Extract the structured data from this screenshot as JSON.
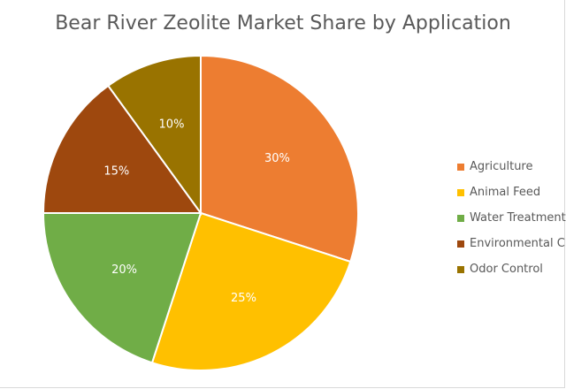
{
  "chart_data": {
    "type": "pie",
    "title": "Bear River Zeolite Market Share by Application",
    "categories": [
      "Agriculture",
      "Animal Feed",
      "Water Treatment",
      "Environmental Cleanup",
      "Odor Control"
    ],
    "values": [
      30,
      25,
      20,
      15,
      10
    ],
    "data_labels": [
      "30%",
      "25%",
      "20%",
      "15%",
      "10%"
    ],
    "colors": [
      "#ED7D31",
      "#FFC000",
      "#70AD47",
      "#9E480E",
      "#997300"
    ],
    "legend": [
      "Agriculture",
      "Animal Feed",
      "Water Treatment",
      "Environmental Cleanup",
      "Odor Control"
    ],
    "legend_position": "right",
    "start_angle": "top, clockwise"
  }
}
